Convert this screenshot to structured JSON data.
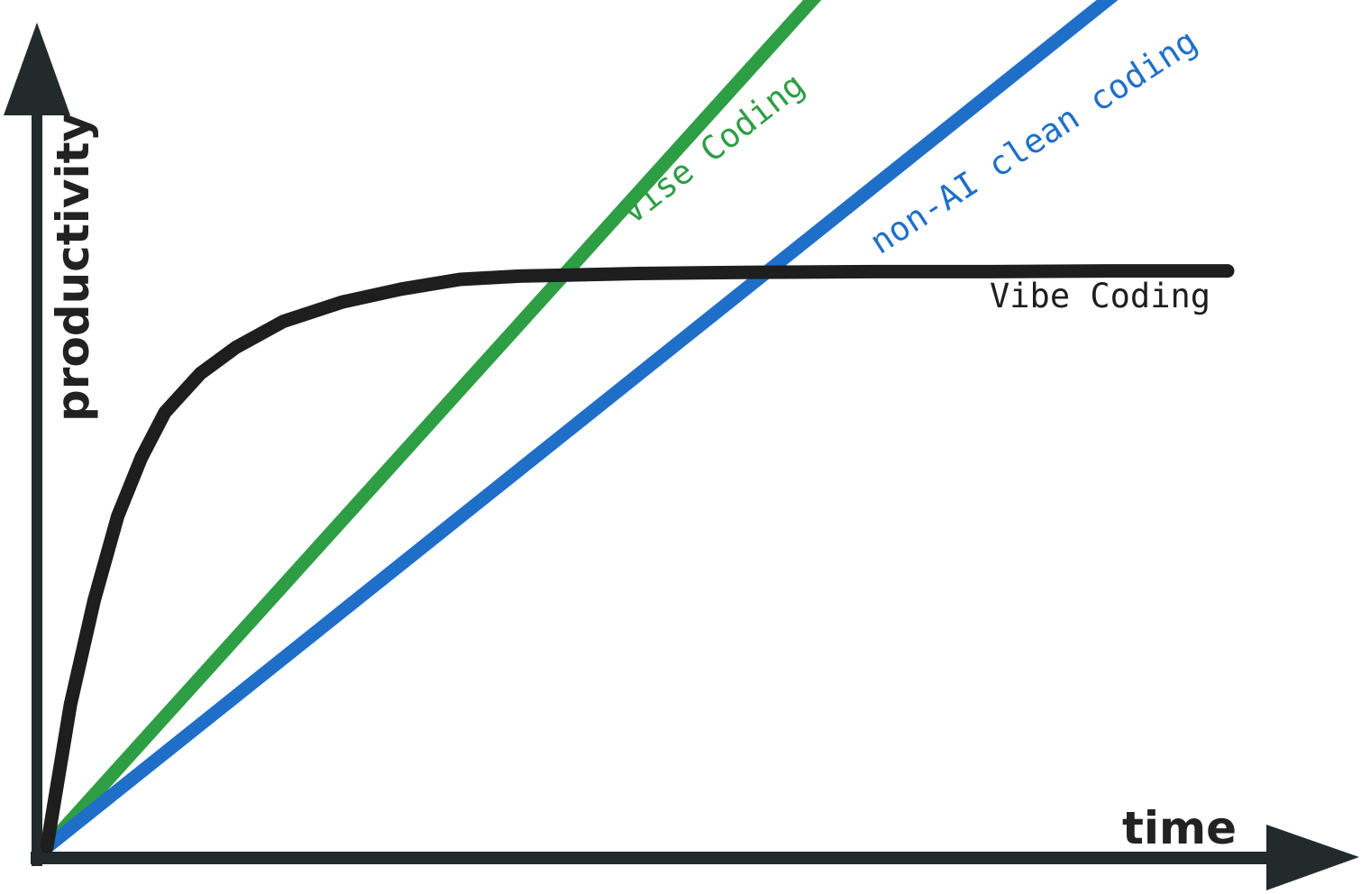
{
  "chart_data": {
    "type": "line",
    "title": "",
    "xlabel": "time",
    "ylabel": "productivity",
    "grid": false,
    "legend": "none",
    "colors": {
      "axis": "#222a2c",
      "vibe": "#1e1e1e",
      "vise": "#2e9e44",
      "clean": "#1f6fc9"
    },
    "series": [
      {
        "name": "Vibe Coding",
        "color": "#1e1e1e",
        "x": [
          0,
          2,
          4,
          6,
          8,
          10,
          13,
          16,
          20,
          25,
          30,
          35,
          40,
          50,
          60,
          70,
          80,
          90,
          100
        ],
        "y": [
          0,
          22,
          38,
          51,
          60,
          67,
          73,
          77,
          81,
          84,
          86,
          87.5,
          88,
          88.4,
          88.6,
          88.7,
          88.7,
          88.8,
          88.8
        ]
      },
      {
        "name": "Vise Coding",
        "color": "#2e9e44",
        "x": [
          0,
          71
        ],
        "y": [
          0,
          143
        ]
      },
      {
        "name": "non-AI clean coding",
        "color": "#1f6fc9",
        "x": [
          0,
          97
        ],
        "y": [
          0,
          141
        ]
      }
    ],
    "labels": {
      "vibe": "Vibe Coding",
      "vise": "Vise Coding",
      "clean": "non-AI clean coding"
    }
  }
}
